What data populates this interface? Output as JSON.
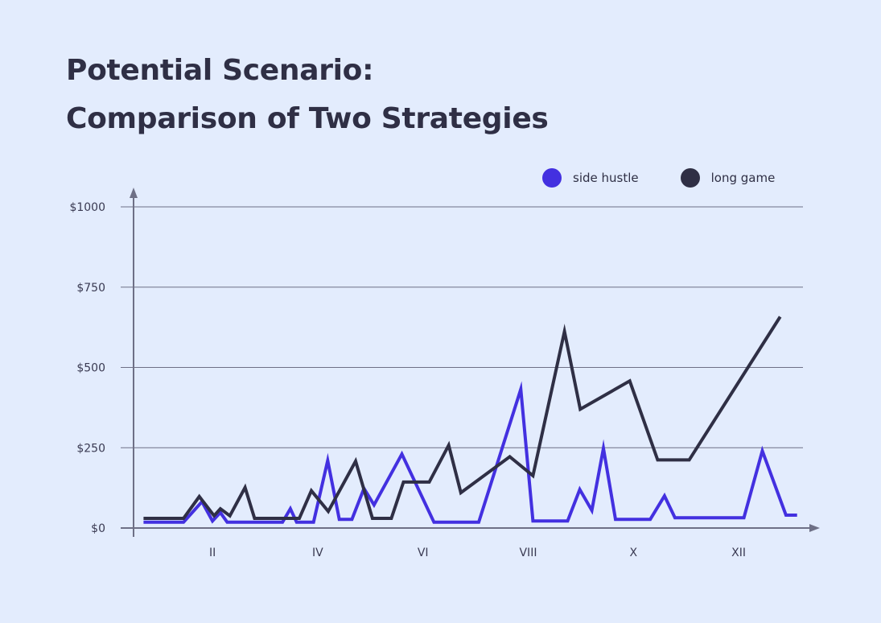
{
  "colors": {
    "background": "#e3ecfd",
    "text": "#2f2f45",
    "axis": "#6e7086",
    "grid": "#6e7086",
    "side_hustle": "#4330e0",
    "long_game": "#2f2f45"
  },
  "chart_data": {
    "type": "line",
    "title": "Potential Scenario:",
    "subtitle": "Comparison of Two Strategies",
    "xlabel": "",
    "ylabel": "",
    "xlim": [
      0.5,
      13.1
    ],
    "ylim": [
      0,
      1000
    ],
    "grid": true,
    "legend_position": "top-right",
    "y_ticks": [
      {
        "value": 0,
        "label": "$0"
      },
      {
        "value": 250,
        "label": "$250"
      },
      {
        "value": 500,
        "label": "$500"
      },
      {
        "value": 750,
        "label": "$750"
      },
      {
        "value": 1000,
        "label": "$1000"
      }
    ],
    "x_ticks": [
      {
        "value": 2,
        "label": "II"
      },
      {
        "value": 4,
        "label": "IV"
      },
      {
        "value": 6,
        "label": "VI"
      },
      {
        "value": 8,
        "label": "VIII"
      },
      {
        "value": 10,
        "label": "X"
      },
      {
        "value": 12,
        "label": "XII"
      }
    ],
    "series": [
      {
        "name": "side hustle",
        "color": "#4330e0",
        "points": [
          [
            0.69,
            18
          ],
          [
            1.45,
            18
          ],
          [
            1.8,
            82
          ],
          [
            2.0,
            22
          ],
          [
            2.15,
            48
          ],
          [
            2.28,
            18
          ],
          [
            3.33,
            18
          ],
          [
            3.48,
            60
          ],
          [
            3.6,
            18
          ],
          [
            3.92,
            18
          ],
          [
            4.19,
            210
          ],
          [
            4.41,
            27
          ],
          [
            4.65,
            27
          ],
          [
            4.88,
            123
          ],
          [
            5.07,
            72
          ],
          [
            5.6,
            230
          ],
          [
            6.21,
            18
          ],
          [
            7.06,
            18
          ],
          [
            7.86,
            432
          ],
          [
            8.09,
            22
          ],
          [
            8.75,
            22
          ],
          [
            8.98,
            120
          ],
          [
            9.21,
            55
          ],
          [
            9.43,
            248
          ],
          [
            9.66,
            27
          ],
          [
            10.32,
            27
          ],
          [
            10.59,
            100
          ],
          [
            10.79,
            32
          ],
          [
            11.61,
            32
          ],
          [
            12.1,
            32
          ],
          [
            12.45,
            240
          ],
          [
            12.9,
            40
          ],
          [
            13.11,
            40
          ]
        ]
      },
      {
        "name": "long game",
        "color": "#2f2f45",
        "points": [
          [
            0.69,
            30
          ],
          [
            1.45,
            30
          ],
          [
            1.75,
            98
          ],
          [
            2.03,
            38
          ],
          [
            2.15,
            60
          ],
          [
            2.33,
            38
          ],
          [
            2.62,
            126
          ],
          [
            2.8,
            30
          ],
          [
            3.65,
            30
          ],
          [
            3.88,
            116
          ],
          [
            4.2,
            52
          ],
          [
            4.72,
            208
          ],
          [
            5.04,
            30
          ],
          [
            5.4,
            30
          ],
          [
            5.63,
            143
          ],
          [
            6.12,
            143
          ],
          [
            6.49,
            258
          ],
          [
            6.72,
            110
          ],
          [
            7.65,
            222
          ],
          [
            8.09,
            163
          ],
          [
            8.69,
            612
          ],
          [
            8.99,
            370
          ],
          [
            9.93,
            458
          ],
          [
            10.46,
            212
          ],
          [
            11.06,
            212
          ],
          [
            12.79,
            658
          ]
        ]
      }
    ]
  }
}
